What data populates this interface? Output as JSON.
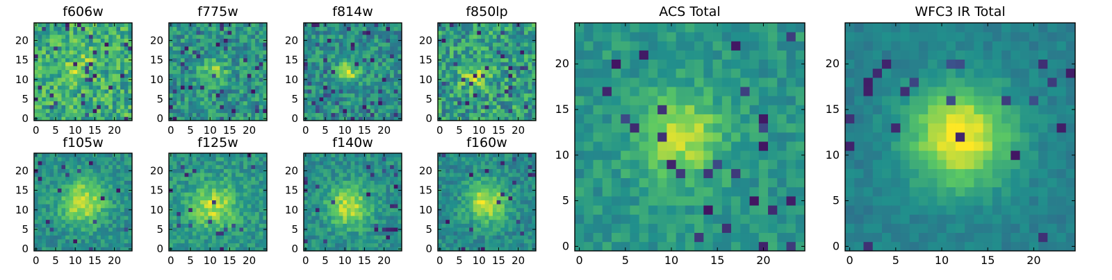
{
  "chart_data": {
    "type": "heatmap",
    "colormap": "viridis",
    "colormap_stops": [
      "#440154",
      "#3b528b",
      "#21908c",
      "#5dc963",
      "#fde725"
    ],
    "panels": [
      {
        "id": "f606w",
        "title": "f606w",
        "size": "small",
        "grid": [
          25,
          25
        ],
        "xlim": [
          -0.5,
          24.5
        ],
        "ylim": [
          -0.5,
          24.5
        ],
        "xticks": [
          0,
          5,
          10,
          15,
          20
        ],
        "yticks": [
          0,
          5,
          10,
          15,
          20
        ],
        "center": [
          11,
          13
        ],
        "source_amplitude": 0.18,
        "source_width": 3.0,
        "background": 0.62,
        "noise": 0.42,
        "dark_fraction": 0.05
      },
      {
        "id": "f775w",
        "title": "f775w",
        "size": "small",
        "grid": [
          25,
          25
        ],
        "xlim": [
          -0.5,
          24.5
        ],
        "ylim": [
          -0.5,
          24.5
        ],
        "xticks": [
          0,
          5,
          10,
          15,
          20
        ],
        "yticks": [
          0,
          5,
          10,
          15,
          20
        ],
        "center": [
          11,
          12
        ],
        "source_amplitude": 0.28,
        "source_width": 2.2,
        "background": 0.52,
        "noise": 0.36,
        "dark_fraction": 0.05
      },
      {
        "id": "f814w",
        "title": "f814w",
        "size": "small",
        "grid": [
          25,
          25
        ],
        "xlim": [
          -0.5,
          24.5
        ],
        "ylim": [
          -0.5,
          24.5
        ],
        "xticks": [
          0,
          5,
          10,
          15,
          20
        ],
        "yticks": [
          0,
          5,
          10,
          15,
          20
        ],
        "center": [
          11,
          12
        ],
        "source_amplitude": 0.36,
        "source_width": 2.0,
        "background": 0.5,
        "noise": 0.34,
        "dark_fraction": 0.05
      },
      {
        "id": "f850lp",
        "title": "f850lp",
        "size": "small",
        "grid": [
          25,
          25
        ],
        "xlim": [
          -0.5,
          24.5
        ],
        "ylim": [
          -0.5,
          24.5
        ],
        "xticks": [
          0,
          5,
          10,
          15,
          20
        ],
        "yticks": [
          0,
          5,
          10,
          15,
          20
        ],
        "center": [
          9,
          11
        ],
        "source_amplitude": 0.25,
        "source_width": 2.5,
        "background": 0.56,
        "noise": 0.44,
        "dark_fraction": 0.05
      },
      {
        "id": "f105w",
        "title": "f105w",
        "size": "small",
        "grid": [
          25,
          25
        ],
        "xlim": [
          -0.5,
          24.5
        ],
        "ylim": [
          -0.5,
          24.5
        ],
        "xticks": [
          0,
          5,
          10,
          15,
          20
        ],
        "yticks": [
          0,
          5,
          10,
          15,
          20
        ],
        "center": [
          12,
          12
        ],
        "source_amplitude": 0.42,
        "source_width": 4.0,
        "background": 0.5,
        "noise": 0.24,
        "dark_fraction": 0.03
      },
      {
        "id": "f125w",
        "title": "f125w",
        "size": "small",
        "grid": [
          25,
          25
        ],
        "xlim": [
          -0.5,
          24.5
        ],
        "ylim": [
          -0.5,
          24.5
        ],
        "xticks": [
          0,
          5,
          10,
          15,
          20
        ],
        "yticks": [
          0,
          5,
          10,
          15,
          20
        ],
        "center": [
          11,
          11
        ],
        "source_amplitude": 0.38,
        "source_width": 4.0,
        "background": 0.52,
        "noise": 0.26,
        "dark_fraction": 0.03
      },
      {
        "id": "f140w",
        "title": "f140w",
        "size": "small",
        "grid": [
          25,
          25
        ],
        "xlim": [
          -0.5,
          24.5
        ],
        "ylim": [
          -0.5,
          24.5
        ],
        "xticks": [
          0,
          5,
          10,
          15,
          20
        ],
        "yticks": [
          0,
          5,
          10,
          15,
          20
        ],
        "center": [
          11,
          11
        ],
        "source_amplitude": 0.42,
        "source_width": 3.6,
        "background": 0.5,
        "noise": 0.24,
        "dark_fraction": 0.03
      },
      {
        "id": "f160w",
        "title": "f160w",
        "size": "small",
        "grid": [
          25,
          25
        ],
        "xlim": [
          -0.5,
          24.5
        ],
        "ylim": [
          -0.5,
          24.5
        ],
        "xticks": [
          0,
          5,
          10,
          15,
          20
        ],
        "yticks": [
          0,
          5,
          10,
          15,
          20
        ],
        "center": [
          12,
          12
        ],
        "source_amplitude": 0.45,
        "source_width": 3.6,
        "background": 0.48,
        "noise": 0.24,
        "dark_fraction": 0.03
      },
      {
        "id": "acs-total",
        "title": "ACS Total",
        "size": "large",
        "grid": [
          25,
          25
        ],
        "xlim": [
          -0.5,
          24.5
        ],
        "ylim": [
          -0.5,
          24.5
        ],
        "xticks": [
          0,
          5,
          10,
          15,
          20
        ],
        "yticks": [
          0,
          5,
          10,
          15,
          20
        ],
        "center": [
          11,
          12
        ],
        "source_amplitude": 0.38,
        "source_width": 3.2,
        "background": 0.53,
        "noise": 0.2,
        "dark_fraction": 0.04
      },
      {
        "id": "wfc3-ir-total",
        "title": "WFC3 IR Total",
        "size": "large",
        "grid": [
          25,
          25
        ],
        "xlim": [
          -0.5,
          24.5
        ],
        "ylim": [
          -0.5,
          24.5
        ],
        "xticks": [
          0,
          5,
          10,
          15,
          20
        ],
        "yticks": [
          0,
          5,
          10,
          15,
          20
        ],
        "center": [
          12,
          12
        ],
        "source_amplitude": 0.58,
        "source_width": 3.8,
        "background": 0.44,
        "noise": 0.12,
        "dark_fraction": 0.03
      }
    ]
  }
}
